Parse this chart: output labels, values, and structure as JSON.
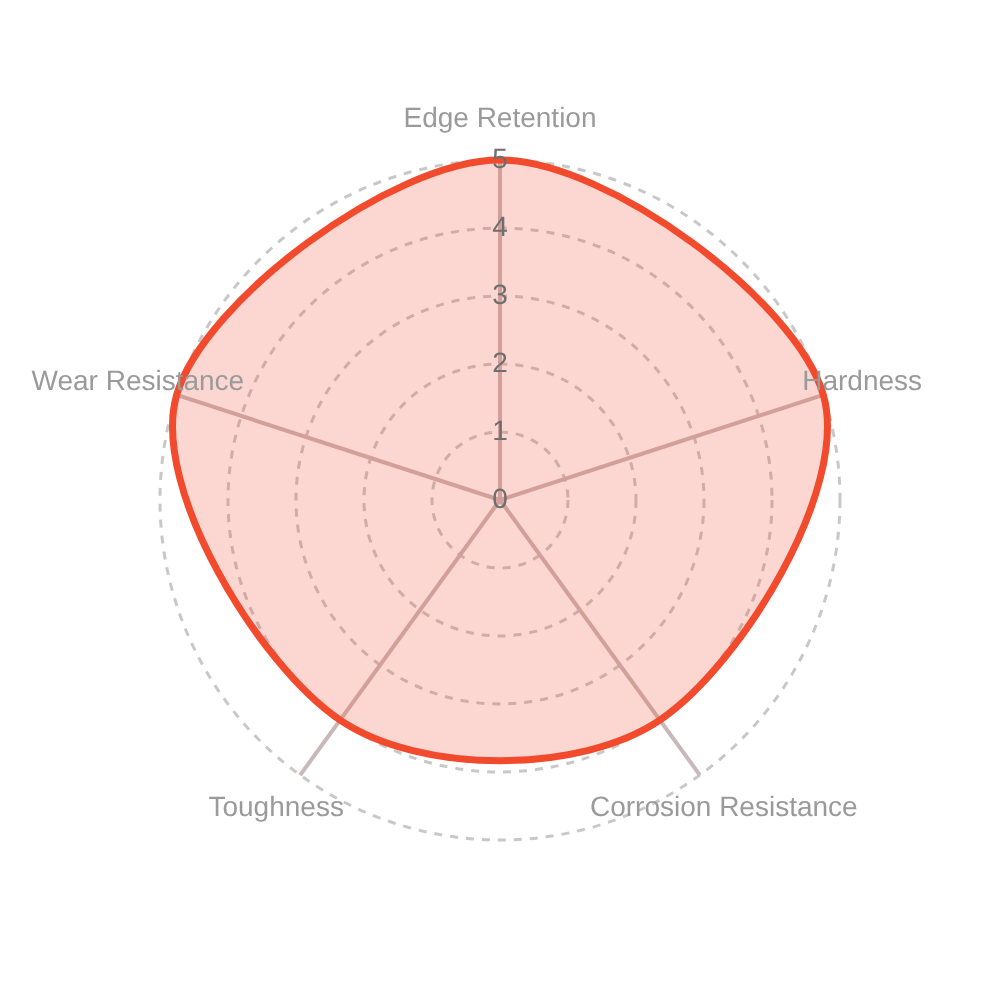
{
  "chart_data": {
    "type": "radar",
    "categories": [
      "Edge Retention",
      "Hardness",
      "Corrosion Resistance",
      "Toughness",
      "Wear Resistance"
    ],
    "series": [
      {
        "color": "#f24a2c",
        "values": [
          5,
          5,
          4,
          4,
          5
        ]
      }
    ],
    "ylim": [
      0,
      5
    ],
    "yticks": [
      0,
      1,
      2,
      3,
      4,
      5
    ],
    "grid": true
  }
}
